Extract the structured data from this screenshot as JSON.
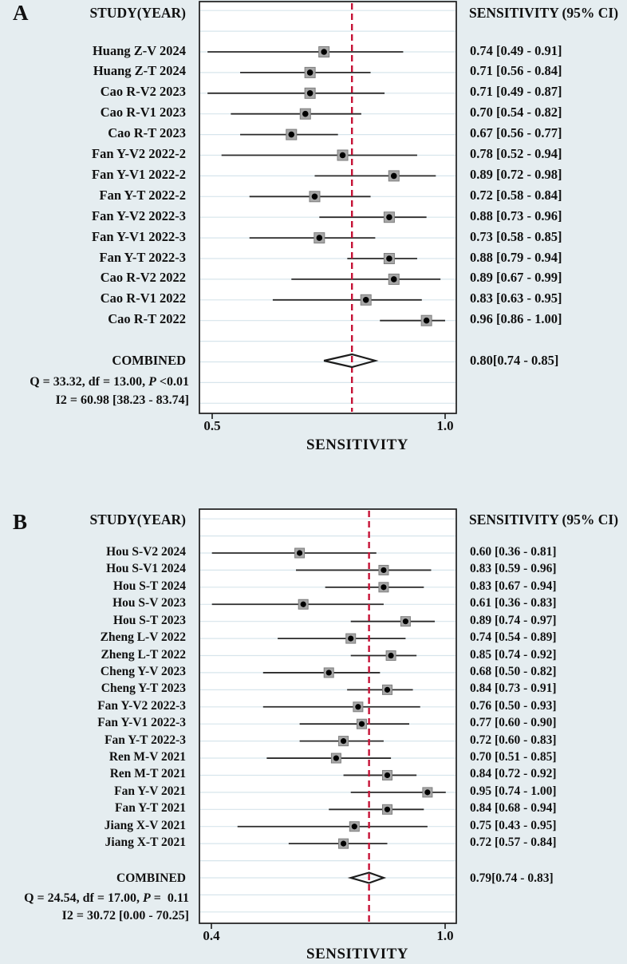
{
  "colors": {
    "background": "#e5edf0",
    "plot_background": "#ffffff",
    "gridline": "#d7e5ec",
    "frame": "#1c1c1c",
    "ci_line": "#2a2a2a",
    "marker_fill": "#a8a8a8",
    "marker_border": "#7d7d7d",
    "marker_dot": "#000000",
    "ref_line": "#c51236",
    "text": "#111111"
  },
  "chart_data": [
    {
      "type": "forest",
      "panel": "A",
      "study_col_header": "STUDY(YEAR)",
      "value_col_header": "SENSITIVITY (95% CI)",
      "xlabel": "SENSITIVITY",
      "x_tick_labels": [
        "0.5",
        "1.0"
      ],
      "x_tick_values": [
        0.5,
        1.0
      ],
      "ref_line_value": 0.8,
      "studies": [
        {
          "label": "Huang Z-V 2024",
          "est": 0.74,
          "lo": 0.49,
          "hi": 0.91,
          "ci_text": "0.74 [0.49 - 0.91]"
        },
        {
          "label": "Huang Z-T 2024",
          "est": 0.71,
          "lo": 0.56,
          "hi": 0.84,
          "ci_text": "0.71 [0.56 - 0.84]"
        },
        {
          "label": "Cao R-V2 2023",
          "est": 0.71,
          "lo": 0.49,
          "hi": 0.87,
          "ci_text": "0.71 [0.49 - 0.87]"
        },
        {
          "label": "Cao R-V1 2023",
          "est": 0.7,
          "lo": 0.54,
          "hi": 0.82,
          "ci_text": "0.70 [0.54 - 0.82]"
        },
        {
          "label": "Cao R-T 2023",
          "est": 0.67,
          "lo": 0.56,
          "hi": 0.77,
          "ci_text": "0.67 [0.56 - 0.77]"
        },
        {
          "label": "Fan Y-V2 2022-2",
          "est": 0.78,
          "lo": 0.52,
          "hi": 0.94,
          "ci_text": "0.78 [0.52 - 0.94]"
        },
        {
          "label": "Fan Y-V1 2022-2",
          "est": 0.89,
          "lo": 0.72,
          "hi": 0.98,
          "ci_text": "0.89 [0.72 - 0.98]"
        },
        {
          "label": "Fan Y-T 2022-2",
          "est": 0.72,
          "lo": 0.58,
          "hi": 0.84,
          "ci_text": "0.72 [0.58 - 0.84]"
        },
        {
          "label": "Fan Y-V2 2022-3",
          "est": 0.88,
          "lo": 0.73,
          "hi": 0.96,
          "ci_text": "0.88 [0.73 - 0.96]"
        },
        {
          "label": "Fan Y-V1 2022-3",
          "est": 0.73,
          "lo": 0.58,
          "hi": 0.85,
          "ci_text": "0.73 [0.58 - 0.85]"
        },
        {
          "label": "Fan Y-T 2022-3",
          "est": 0.88,
          "lo": 0.79,
          "hi": 0.94,
          "ci_text": "0.88 [0.79 - 0.94]"
        },
        {
          "label": "Cao R-V2 2022",
          "est": 0.89,
          "lo": 0.67,
          "hi": 0.99,
          "ci_text": "0.89 [0.67 - 0.99]"
        },
        {
          "label": "Cao R-V1 2022",
          "est": 0.83,
          "lo": 0.63,
          "hi": 0.95,
          "ci_text": "0.83 [0.63 - 0.95]"
        },
        {
          "label": "Cao R-T 2022",
          "est": 0.96,
          "lo": 0.86,
          "hi": 1.0,
          "ci_text": "0.96 [0.86 - 1.00]"
        }
      ],
      "combined": {
        "label": "COMBINED",
        "est": 0.8,
        "lo": 0.74,
        "hi": 0.85,
        "ci_text": "0.80[0.74 - 0.85]"
      },
      "heterogeneity": {
        "q_prefix": "Q = 33.32, df = 13.00, ",
        "p_symbol": "P",
        "p_rest": " <0.01",
        "i2_text": "I2 = 60.98 [38.23 - 83.74]"
      }
    },
    {
      "type": "forest",
      "panel": "B",
      "study_col_header": "STUDY(YEAR)",
      "value_col_header": "SENSITIVITY (95% CI)",
      "xlabel": "SENSITIVITY",
      "x_tick_labels": [
        "0.4",
        "1.0"
      ],
      "x_tick_values": [
        0.4,
        1.0
      ],
      "ref_line_value": 0.79,
      "studies": [
        {
          "label": "Hou S-V2 2024",
          "est": 0.6,
          "lo": 0.36,
          "hi": 0.81,
          "ci_text": "0.60 [0.36 - 0.81]"
        },
        {
          "label": "Hou S-V1 2024",
          "est": 0.83,
          "lo": 0.59,
          "hi": 0.96,
          "ci_text": "0.83 [0.59 - 0.96]"
        },
        {
          "label": "Hou S-T 2024",
          "est": 0.83,
          "lo": 0.67,
          "hi": 0.94,
          "ci_text": "0.83 [0.67 - 0.94]"
        },
        {
          "label": "Hou S-V 2023",
          "est": 0.61,
          "lo": 0.36,
          "hi": 0.83,
          "ci_text": "0.61 [0.36 - 0.83]"
        },
        {
          "label": "Hou S-T 2023",
          "est": 0.89,
          "lo": 0.74,
          "hi": 0.97,
          "ci_text": "0.89 [0.74 - 0.97]"
        },
        {
          "label": "Zheng L-V 2022",
          "est": 0.74,
          "lo": 0.54,
          "hi": 0.89,
          "ci_text": "0.74 [0.54 - 0.89]"
        },
        {
          "label": "Zheng L-T 2022",
          "est": 0.85,
          "lo": 0.74,
          "hi": 0.92,
          "ci_text": "0.85 [0.74 - 0.92]"
        },
        {
          "label": "Cheng Y-V 2023",
          "est": 0.68,
          "lo": 0.5,
          "hi": 0.82,
          "ci_text": "0.68 [0.50 - 0.82]"
        },
        {
          "label": "Cheng Y-T 2023",
          "est": 0.84,
          "lo": 0.73,
          "hi": 0.91,
          "ci_text": "0.84 [0.73 - 0.91]"
        },
        {
          "label": "Fan Y-V2 2022-3",
          "est": 0.76,
          "lo": 0.5,
          "hi": 0.93,
          "ci_text": "0.76 [0.50 - 0.93]"
        },
        {
          "label": "Fan Y-V1 2022-3",
          "est": 0.77,
          "lo": 0.6,
          "hi": 0.9,
          "ci_text": "0.77 [0.60 - 0.90]"
        },
        {
          "label": "Fan Y-T 2022-3",
          "est": 0.72,
          "lo": 0.6,
          "hi": 0.83,
          "ci_text": "0.72 [0.60 - 0.83]"
        },
        {
          "label": "Ren M-V 2021",
          "est": 0.7,
          "lo": 0.51,
          "hi": 0.85,
          "ci_text": "0.70 [0.51 - 0.85]"
        },
        {
          "label": "Ren M-T 2021",
          "est": 0.84,
          "lo": 0.72,
          "hi": 0.92,
          "ci_text": "0.84 [0.72 - 0.92]"
        },
        {
          "label": "Fan Y-V 2021",
          "est": 0.95,
          "lo": 0.74,
          "hi": 1.0,
          "ci_text": "0.95 [0.74 - 1.00]"
        },
        {
          "label": "Fan Y-T 2021",
          "est": 0.84,
          "lo": 0.68,
          "hi": 0.94,
          "ci_text": "0.84 [0.68 - 0.94]"
        },
        {
          "label": "Jiang X-V 2021",
          "est": 0.75,
          "lo": 0.43,
          "hi": 0.95,
          "ci_text": "0.75 [0.43 - 0.95]"
        },
        {
          "label": "Jiang X-T 2021",
          "est": 0.72,
          "lo": 0.57,
          "hi": 0.84,
          "ci_text": "0.72 [0.57 - 0.84]"
        }
      ],
      "combined": {
        "label": "COMBINED",
        "est": 0.79,
        "lo": 0.74,
        "hi": 0.83,
        "ci_text": "0.79[0.74 - 0.83]"
      },
      "heterogeneity": {
        "q_prefix": "Q = 24.54, df = 17.00, ",
        "p_symbol": "P",
        "p_rest": " =  0.11",
        "i2_text": "I2 = 30.72 [0.00 - 70.25]"
      }
    }
  ]
}
